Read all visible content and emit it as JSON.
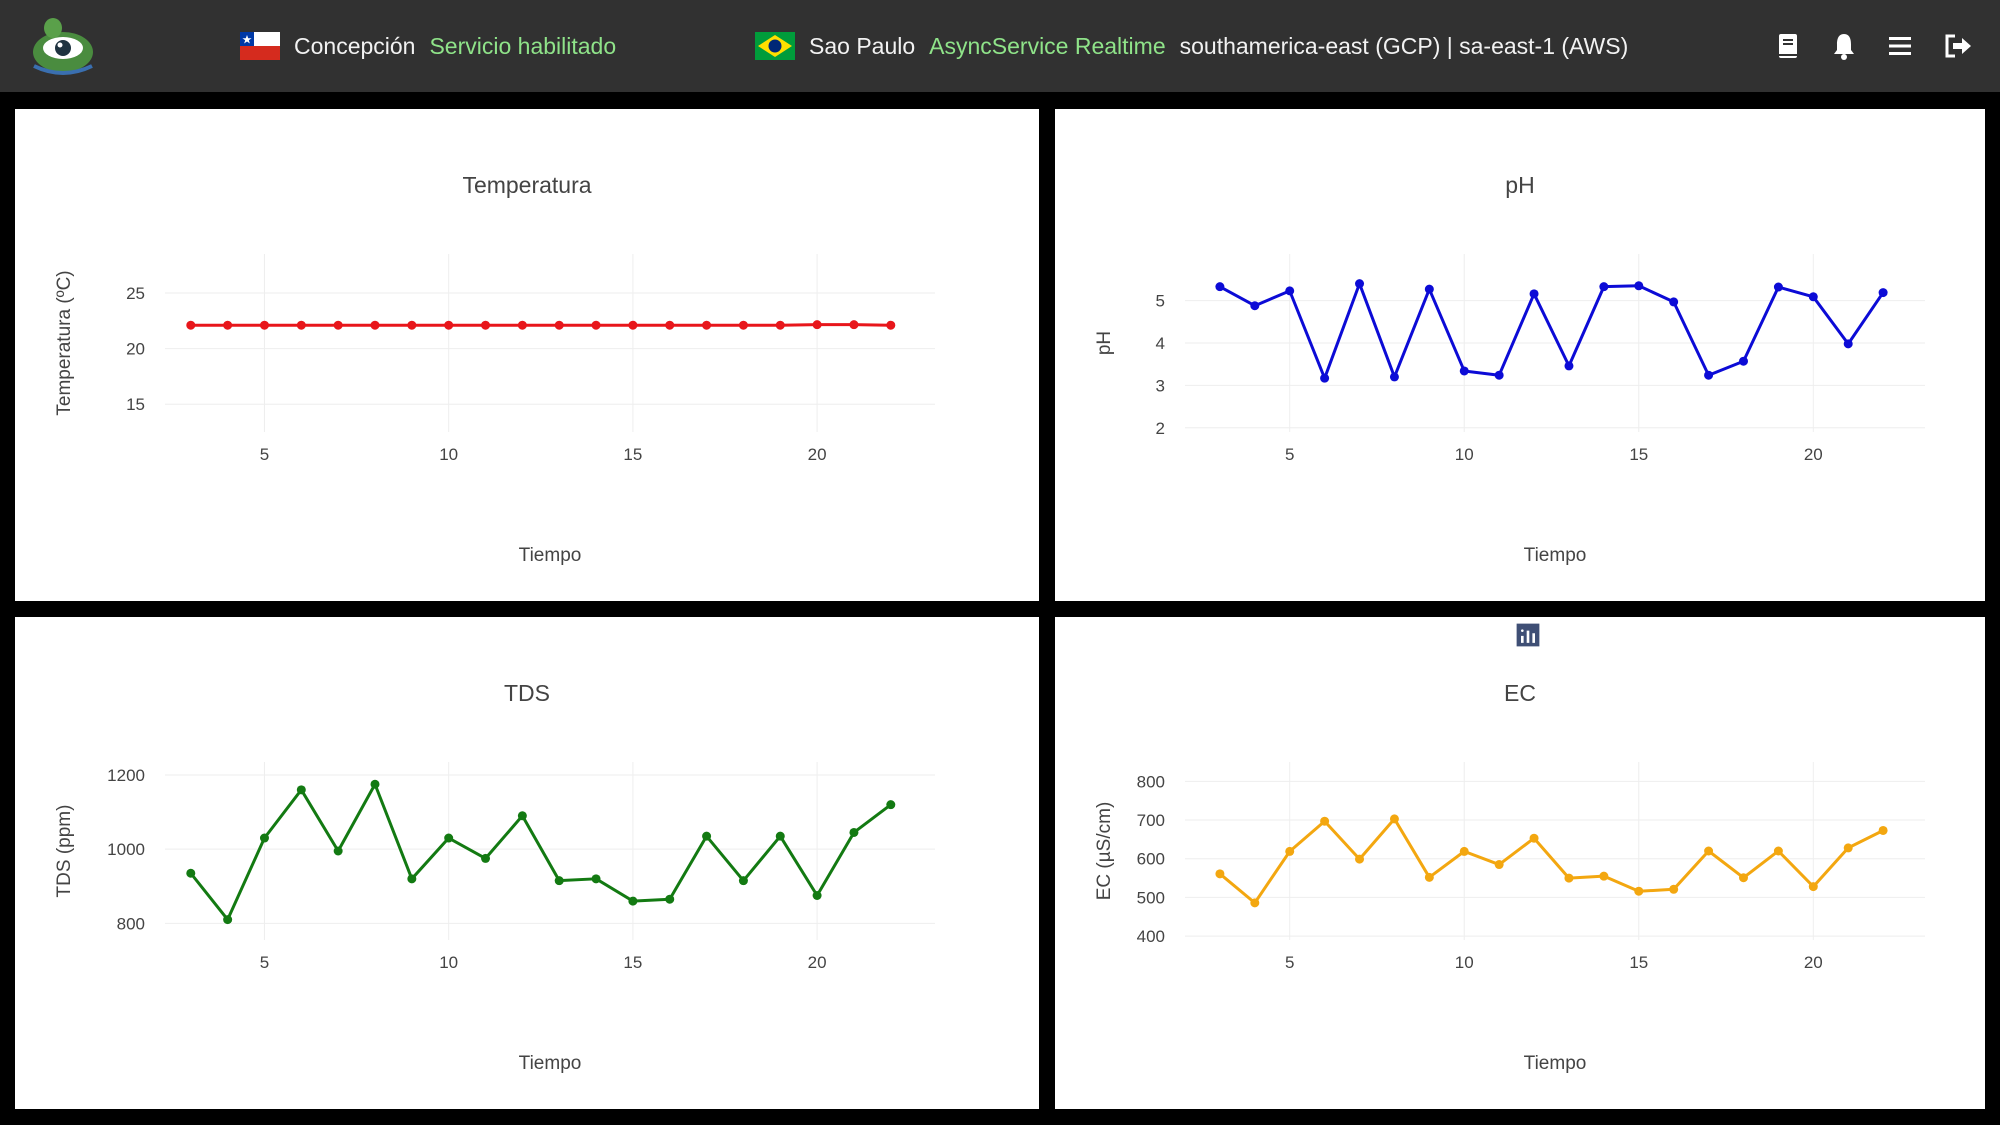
{
  "navbar": {
    "logo_icon": "frog-eye-logo-icon",
    "location1": {
      "flag_icon": "chile-flag-icon",
      "city": "Concepción",
      "status": "Servicio habilitado"
    },
    "location2": {
      "flag_icon": "brazil-flag-icon",
      "city": "Sao Paulo",
      "status": "AsyncService Realtime",
      "region": "southamerica-east (GCP) | sa-east-1 (AWS)"
    },
    "actions": [
      "book-icon",
      "bell-icon",
      "menu-icon",
      "logout-icon"
    ],
    "colors": {
      "background": "#313131",
      "status": "#8fe389",
      "text": "#f2f2f2"
    }
  },
  "modebar": {
    "buttons": [
      "camera-icon",
      "zoom-icon",
      "pan-icon",
      "box-select-icon",
      "lasso-select-icon",
      "zoom-in-icon",
      "zoom-out-icon",
      "autoscale-icon",
      "reset-axes-icon",
      "spike-lines-icon",
      "hover-closest-icon",
      "hover-compare-icon",
      "plotly-logo-icon"
    ]
  },
  "chart_data": [
    {
      "id": "temperatura",
      "type": "line",
      "title": "Temperatura",
      "xlabel": "Tiempo",
      "ylabel": "Temperatura (ºC)",
      "color": "#e8161b",
      "xlim": [
        2.3,
        23.2
      ],
      "ylim": [
        12.5,
        28.5
      ],
      "xticks": [
        5,
        10,
        15,
        20
      ],
      "yticks": [
        15,
        20,
        25
      ],
      "x": [
        3,
        4,
        5,
        6,
        7,
        8,
        9,
        10,
        11,
        12,
        13,
        14,
        15,
        16,
        17,
        18,
        19,
        20,
        21,
        22
      ],
      "y": [
        22.1,
        22.1,
        22.1,
        22.1,
        22.1,
        22.1,
        22.1,
        22.1,
        22.1,
        22.1,
        22.1,
        22.1,
        22.1,
        22.1,
        22.1,
        22.1,
        22.1,
        22.15,
        22.15,
        22.1
      ]
    },
    {
      "id": "ph",
      "type": "line",
      "title": "pH",
      "xlabel": "Tiempo",
      "ylabel": "pH",
      "color": "#0c0bd6",
      "xlim": [
        2.0,
        23.2
      ],
      "ylim": [
        1.9,
        6.1
      ],
      "xticks": [
        5,
        10,
        15,
        20
      ],
      "yticks": [
        2,
        3,
        4,
        5
      ],
      "x": [
        3,
        4,
        5,
        6,
        7,
        8,
        9,
        10,
        11,
        12,
        13,
        14,
        15,
        16,
        17,
        18,
        19,
        20,
        21,
        22
      ],
      "y": [
        5.33,
        4.88,
        5.23,
        3.17,
        5.4,
        3.2,
        5.27,
        3.34,
        3.24,
        5.16,
        3.46,
        5.33,
        5.35,
        4.97,
        3.24,
        3.57,
        5.32,
        5.09,
        3.98,
        5.19
      ]
    },
    {
      "id": "tds",
      "type": "line",
      "title": "TDS",
      "xlabel": "Tiempo",
      "ylabel": "TDS (ppm)",
      "color": "#137a12",
      "xlim": [
        2.3,
        23.2
      ],
      "ylim": [
        755,
        1235
      ],
      "xticks": [
        5,
        10,
        15,
        20
      ],
      "yticks": [
        800,
        1000,
        1200
      ],
      "x": [
        3,
        4,
        5,
        6,
        7,
        8,
        9,
        10,
        11,
        12,
        13,
        14,
        15,
        16,
        17,
        18,
        19,
        20,
        21,
        22
      ],
      "y": [
        935,
        810,
        1030,
        1160,
        995,
        1175,
        920,
        1030,
        975,
        1090,
        915,
        920,
        860,
        865,
        1035,
        915,
        1035,
        875,
        1045,
        1120
      ]
    },
    {
      "id": "ec",
      "type": "line",
      "title": "EC",
      "xlabel": "Tiempo",
      "ylabel": "EC (µS/cm)",
      "color": "#f3a710",
      "xlim": [
        2.0,
        23.2
      ],
      "ylim": [
        390,
        850
      ],
      "xticks": [
        5,
        10,
        15,
        20
      ],
      "yticks": [
        400,
        500,
        600,
        700,
        800
      ],
      "x": [
        3,
        4,
        5,
        6,
        7,
        8,
        9,
        10,
        11,
        12,
        13,
        14,
        15,
        16,
        17,
        18,
        19,
        20,
        21,
        22
      ],
      "y": [
        561,
        486,
        619,
        697,
        599,
        703,
        552,
        619,
        585,
        653,
        550,
        555,
        516,
        521,
        620,
        551,
        620,
        528,
        628,
        673
      ]
    }
  ]
}
